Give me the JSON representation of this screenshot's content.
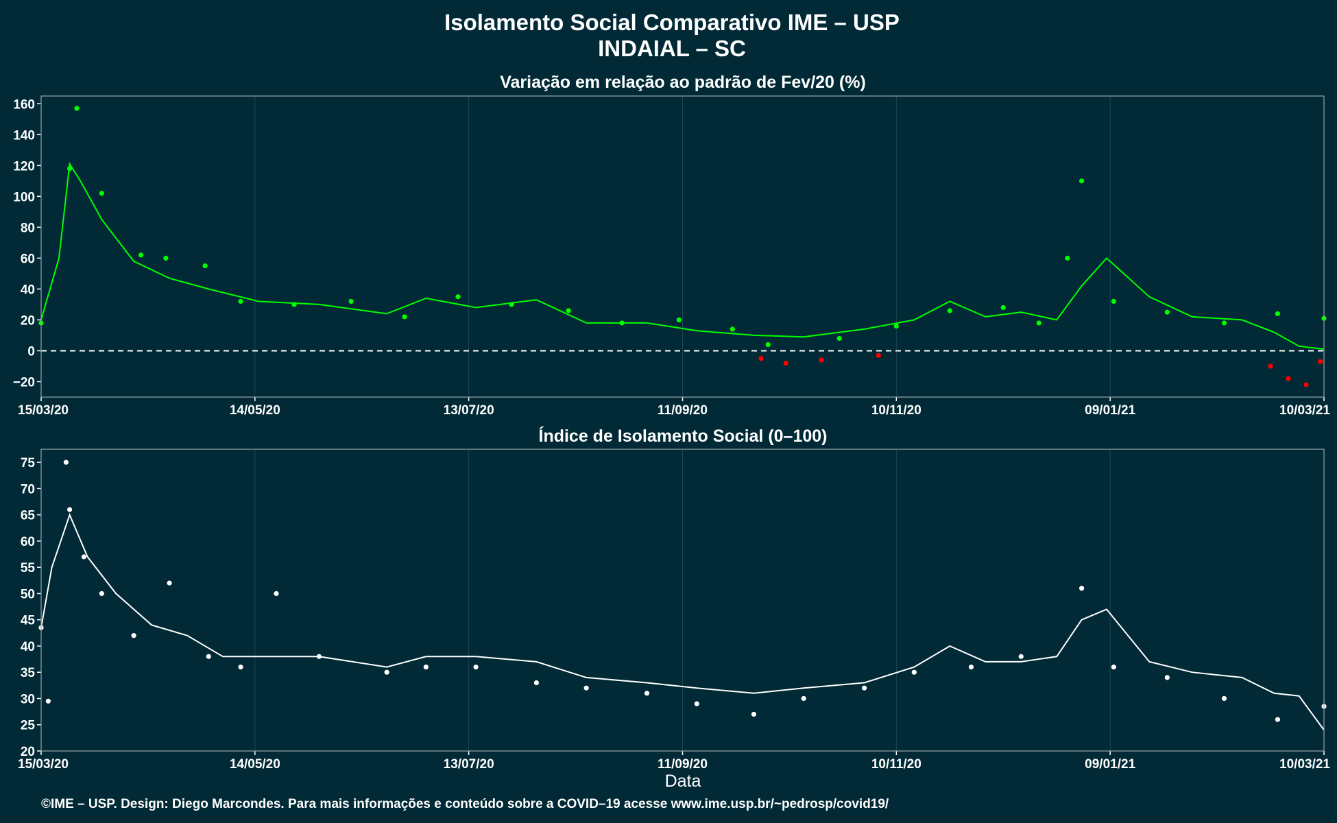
{
  "title_line1": "Isolamento Social Comparativo IME – USP",
  "title_line2": "INDAIAL – SC",
  "footer": "©IME – USP. Design: Diego Marcondes. Para mais informações e conteúdo sobre a COVID–19 acesse www.ime.usp.br/~pedrosp/covid19/",
  "colors": {
    "background": "#012a36",
    "positive": "#00ff00",
    "negative": "#ff0000",
    "index_points": "#ffffff",
    "moving_average_top": "#00ff00",
    "moving_average_bottom": "#ffffff"
  },
  "chart_data": [
    {
      "type": "scatter",
      "title": "Variação em relação ao padrão de Fev/20 (%)",
      "xlabel": "",
      "ylabel": "",
      "x_range": [
        "15/03/20",
        "10/03/21"
      ],
      "ylim": [
        -30,
        165
      ],
      "x_tick_labels": [
        "15/03/20",
        "14/05/20",
        "13/07/20",
        "11/09/20",
        "10/11/20",
        "09/01/21",
        "10/03/21"
      ],
      "y_ticks": [
        -20,
        0,
        20,
        40,
        60,
        80,
        100,
        120,
        140,
        160
      ],
      "y_tick_labels": [
        "−20",
        "0",
        "20",
        "40",
        "60",
        "80",
        "100",
        "120",
        "140",
        "160"
      ],
      "reference_line": 0,
      "grid": true,
      "series": [
        {
          "kind": "points",
          "x": [
            "15/03/20",
            "23/03/20",
            "25/03/20",
            "01/04/20",
            "12/04/20",
            "19/04/20",
            "30/04/20",
            "10/05/20",
            "25/05/20",
            "10/06/20",
            "25/06/20",
            "10/07/20",
            "25/07/20",
            "10/08/20",
            "25/08/20",
            "10/09/20",
            "25/09/20",
            "05/10/20",
            "25/10/20",
            "10/11/20",
            "25/11/20",
            "10/12/20",
            "20/12/20",
            "28/12/20",
            "01/01/21",
            "10/01/21",
            "25/01/21",
            "10/02/21",
            "25/02/21",
            "10/03/21"
          ],
          "y": [
            18,
            118,
            157,
            102,
            62,
            60,
            55,
            32,
            30,
            32,
            22,
            35,
            30,
            26,
            18,
            20,
            14,
            4,
            8,
            16,
            26,
            28,
            18,
            60,
            110,
            32,
            25,
            18,
            24,
            21
          ]
        },
        {
          "kind": "moving_average",
          "x": [
            "15/03/20",
            "20/03/20",
            "23/03/20",
            "26/03/20",
            "01/04/20",
            "10/04/20",
            "20/04/20",
            "01/05/20",
            "15/05/20",
            "01/06/20",
            "20/06/20",
            "01/07/20",
            "15/07/20",
            "01/08/20",
            "15/08/20",
            "01/09/20",
            "15/09/20",
            "01/10/20",
            "15/10/20",
            "01/11/20",
            "15/11/20",
            "25/11/20",
            "05/12/20",
            "15/12/20",
            "25/12/20",
            "01/01/21",
            "08/01/21",
            "20/01/21",
            "01/02/21",
            "15/02/21",
            "24/02/21",
            "03/03/21",
            "10/03/21"
          ],
          "y": [
            20,
            60,
            121,
            110,
            85,
            58,
            47,
            40,
            32,
            30,
            24,
            34,
            28,
            33,
            18,
            18,
            13,
            10,
            9,
            14,
            20,
            32,
            22,
            25,
            20,
            42,
            60,
            35,
            22,
            20,
            12,
            3,
            1
          ]
        }
      ],
      "negative_points": [
        {
          "x": "03/10/20",
          "y": -5
        },
        {
          "x": "10/10/20",
          "y": -8
        },
        {
          "x": "20/10/20",
          "y": -6
        },
        {
          "x": "05/11/20",
          "y": -3
        },
        {
          "x": "23/02/21",
          "y": -10
        },
        {
          "x": "28/02/21",
          "y": -18
        },
        {
          "x": "05/03/21",
          "y": -22
        },
        {
          "x": "09/03/21",
          "y": -7
        }
      ]
    },
    {
      "type": "scatter",
      "title": "Índice de Isolamento Social (0–100)",
      "xlabel": "Data",
      "ylabel": "",
      "x_range": [
        "15/03/20",
        "10/03/21"
      ],
      "ylim": [
        20,
        77.5
      ],
      "x_tick_labels": [
        "15/03/20",
        "14/05/20",
        "13/07/20",
        "11/09/20",
        "10/11/20",
        "09/01/21",
        "10/03/21"
      ],
      "y_ticks": [
        20,
        25,
        30,
        35,
        40,
        45,
        50,
        55,
        60,
        65,
        70,
        75
      ],
      "grid": true,
      "series": [
        {
          "kind": "points",
          "x": [
            "15/03/20",
            "17/03/20",
            "22/03/20",
            "23/03/20",
            "27/03/20",
            "01/04/20",
            "10/04/20",
            "20/04/20",
            "01/05/20",
            "10/05/20",
            "20/05/20",
            "01/06/20",
            "20/06/20",
            "01/07/20",
            "15/07/20",
            "01/08/20",
            "15/08/20",
            "01/09/20",
            "15/09/20",
            "01/10/20",
            "15/10/20",
            "01/11/20",
            "15/11/20",
            "01/12/20",
            "15/12/20",
            "01/01/21",
            "10/01/21",
            "25/01/21",
            "10/02/21",
            "25/02/21",
            "10/03/21"
          ],
          "y": [
            43.5,
            29.5,
            75,
            66,
            57,
            50,
            42,
            52,
            38,
            36,
            50,
            38,
            35,
            36,
            36,
            33,
            32,
            31,
            29,
            27,
            30,
            32,
            35,
            36,
            38,
            51,
            36,
            34,
            30,
            26,
            28.5
          ]
        },
        {
          "kind": "moving_average",
          "x": [
            "15/03/20",
            "18/03/20",
            "23/03/20",
            "28/03/20",
            "05/04/20",
            "15/04/20",
            "25/04/20",
            "05/05/20",
            "15/05/20",
            "01/06/20",
            "20/06/20",
            "01/07/20",
            "15/07/20",
            "01/08/20",
            "15/08/20",
            "01/09/20",
            "15/09/20",
            "01/10/20",
            "15/10/20",
            "01/11/20",
            "15/11/20",
            "25/11/20",
            "05/12/20",
            "15/12/20",
            "25/12/20",
            "01/01/21",
            "08/01/21",
            "20/01/21",
            "01/02/21",
            "15/02/21",
            "24/02/21",
            "03/03/21",
            "10/03/21"
          ],
          "y": [
            43.5,
            55,
            65,
            57,
            50,
            44,
            42,
            38,
            38,
            38,
            36,
            38,
            38,
            37,
            34,
            33,
            32,
            31,
            32,
            33,
            36,
            40,
            37,
            37,
            38,
            45,
            47,
            37,
            35,
            34,
            31,
            30.5,
            24
          ]
        }
      ]
    }
  ]
}
